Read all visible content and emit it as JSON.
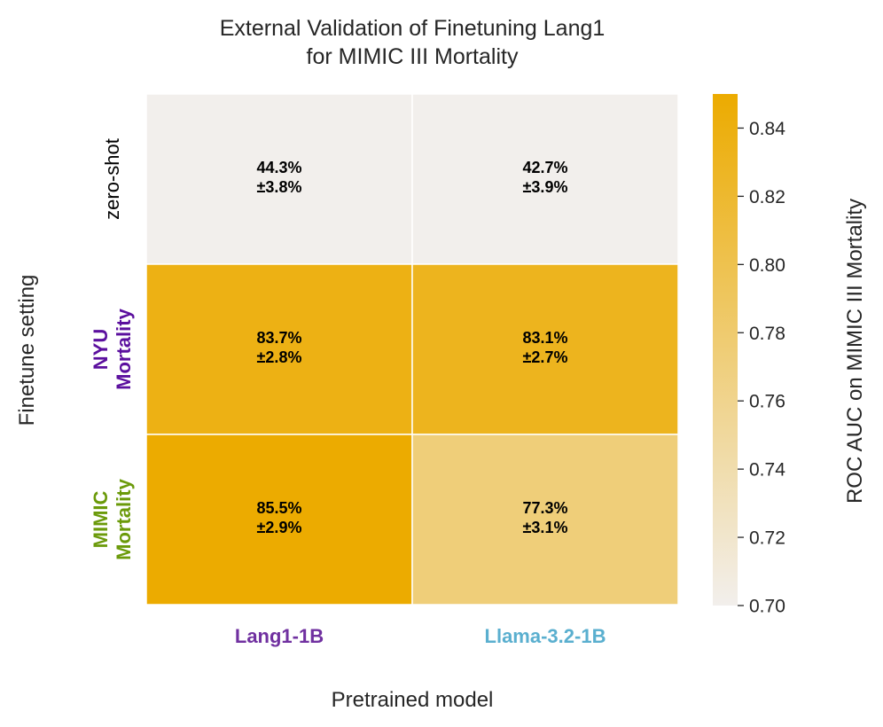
{
  "chart_data": {
    "type": "heatmap",
    "title_lines": [
      "External Validation of Finetuning Lang1",
      "for MIMIC III Mortality"
    ],
    "xlabel": "Pretrained model",
    "ylabel": "Finetune setting",
    "x_categories": [
      {
        "label": "Lang1-1B",
        "color": "#7030a0",
        "bold": true
      },
      {
        "label": "Llama-3.2-1B",
        "color": "#5aafcf",
        "bold": true
      }
    ],
    "y_categories": [
      {
        "lines": [
          "zero-shot"
        ],
        "color": "#000000",
        "bold": false
      },
      {
        "lines": [
          "NYU",
          "Mortality"
        ],
        "color": "#5b0f9e",
        "bold": true
      },
      {
        "lines": [
          "MIMIC",
          "Mortality"
        ],
        "color": "#6b9a0a",
        "bold": true
      }
    ],
    "values": [
      [
        0.443,
        0.427
      ],
      [
        0.837,
        0.831
      ],
      [
        0.855,
        0.773
      ]
    ],
    "cell_labels": [
      [
        [
          "44.3%",
          "±3.8%"
        ],
        [
          "42.7%",
          "±3.9%"
        ]
      ],
      [
        [
          "83.7%",
          "±2.8%"
        ],
        [
          "83.1%",
          "±2.7%"
        ]
      ],
      [
        [
          "85.5%",
          "±2.9%"
        ],
        [
          "77.3%",
          "±3.1%"
        ]
      ]
    ],
    "colorbar": {
      "label": "ROC AUC on MIMIC III Mortality",
      "vmin": 0.7,
      "vmax": 0.85,
      "ticks": [
        0.7,
        0.72,
        0.74,
        0.76,
        0.78,
        0.8,
        0.82,
        0.84
      ],
      "tick_labels": [
        "0.70",
        "0.72",
        "0.74",
        "0.76",
        "0.78",
        "0.80",
        "0.82",
        "0.84"
      ],
      "low_color": "#f2efec",
      "high_color": "#ecab00"
    }
  }
}
